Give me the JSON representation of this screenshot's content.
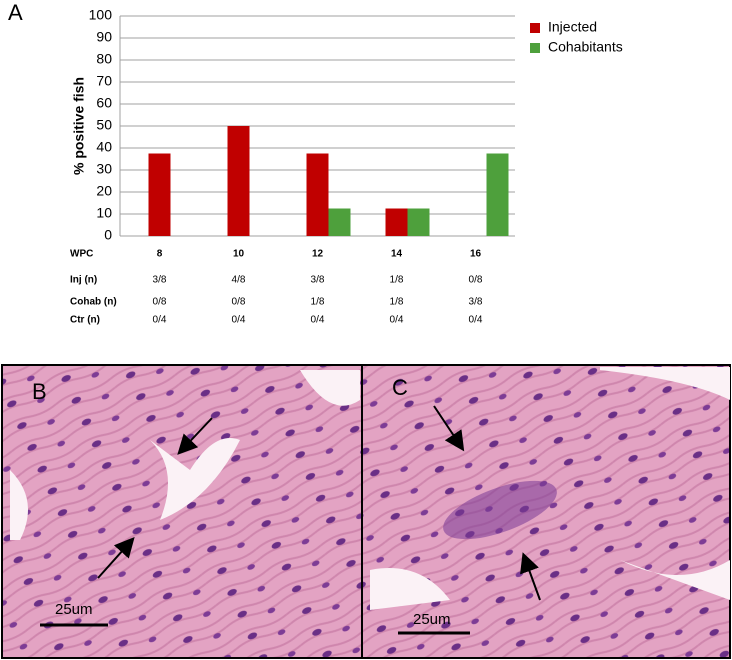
{
  "panel_label": "A",
  "chart_data": {
    "type": "bar",
    "y_label": "% positive fish",
    "x_label": "WPC",
    "categories": [
      "8",
      "10",
      "12",
      "14",
      "16"
    ],
    "series": [
      {
        "name": "Injected",
        "color": "#c00000",
        "values": [
          37.5,
          50,
          37.5,
          12.5,
          0
        ]
      },
      {
        "name": "Cohabitants",
        "color": "#4ea03c",
        "values": [
          0,
          0,
          12.5,
          12.5,
          37.5
        ]
      }
    ],
    "ylim": [
      0,
      100
    ],
    "yticks": [
      0,
      10,
      20,
      30,
      40,
      50,
      60,
      70,
      80,
      90,
      100
    ],
    "grid": true,
    "legend": "top-right"
  },
  "table": {
    "rows": [
      {
        "label": "Inj (n)",
        "values": [
          "3/8",
          "4/8",
          "3/8",
          "1/8",
          "0/8"
        ]
      },
      {
        "label": "Cohab (n)",
        "values": [
          "0/8",
          "0/8",
          "1/8",
          "1/8",
          "3/8"
        ]
      },
      {
        "label": "Ctr (n)",
        "values": [
          "0/4",
          "0/4",
          "0/4",
          "0/4",
          "0/4"
        ]
      }
    ]
  },
  "images": [
    {
      "label": "B",
      "scale": "25um"
    },
    {
      "label": "C",
      "scale": "25um"
    }
  ]
}
